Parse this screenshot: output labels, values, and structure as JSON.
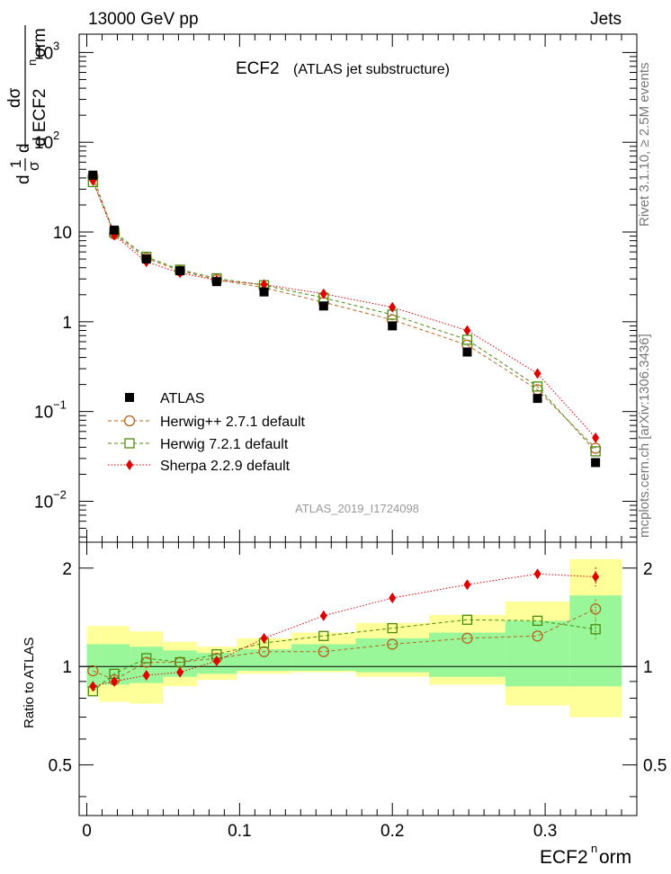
{
  "header": {
    "left": "13000 GeV pp",
    "right": "Jets"
  },
  "side": {
    "version": "Rivet 3.1.10, ≥ 2.5M events",
    "site": "mcplots.cern.ch [arXiv:1306.3436]"
  },
  "ylabel_parts": {
    "d": "d",
    "one": "1",
    "sigma": "σ",
    "dsigma": "dσ",
    "dECF": "d ECF2",
    "sup_n": "n",
    "orm": "orm"
  },
  "xlabel_parts": {
    "main": "ECF2",
    "sup": "n",
    "tail": "orm"
  },
  "ratio_ylabel": "Ratio to ATLAS",
  "colors": {
    "atlas": "#000000",
    "herwigpp": "#b5651d",
    "herwig7": "#4a8a10",
    "sherpa": "#e00000",
    "band_stat": "#99f799",
    "band_tot": "#ffff99"
  },
  "chart_data": [
    {
      "type": "scatter",
      "title": "ECF2",
      "subtitle": "(ATLAS jet substructure)",
      "analysis_label": "ATLAS_2019_I1724098",
      "yscale": "log",
      "xlim": [
        -0.005,
        0.36
      ],
      "ylim": [
        0.0035,
        1600
      ],
      "y_ticks": [
        {
          "value": 0.01,
          "base": "10",
          "exp": "−2"
        },
        {
          "value": 0.1,
          "base": "10",
          "exp": "−1"
        },
        {
          "value": 1,
          "base": "1",
          "exp": ""
        },
        {
          "value": 10,
          "base": "10",
          "exp": ""
        },
        {
          "value": 100,
          "base": "10",
          "exp": "2"
        },
        {
          "value": 1000,
          "base": "10",
          "exp": "3"
        }
      ],
      "x": [
        0.004,
        0.018,
        0.039,
        0.061,
        0.085,
        0.116,
        0.155,
        0.2,
        0.249,
        0.295,
        0.333
      ],
      "series": [
        {
          "name": "ATLAS",
          "marker": "filled-square",
          "values": [
            43,
            10.5,
            5.0,
            3.7,
            2.8,
            2.15,
            1.5,
            0.9,
            0.46,
            0.14,
            0.027
          ]
        },
        {
          "name": "Herwig++ 2.7.1 default",
          "marker": "open-circle",
          "line": "dashed",
          "values": [
            41.5,
            9.5,
            5.1,
            3.7,
            2.95,
            2.4,
            1.65,
            1.05,
            0.55,
            0.175,
            0.039
          ]
        },
        {
          "name": "Herwig 7.2.1 default",
          "marker": "open-square",
          "line": "dashed",
          "values": [
            36,
            9.9,
            5.3,
            3.8,
            3.05,
            2.55,
            1.85,
            1.2,
            0.63,
            0.19,
            0.036
          ]
        },
        {
          "name": "Sherpa 2.2.9 default",
          "marker": "diamond",
          "line": "dotted",
          "values": [
            37.5,
            9.2,
            4.65,
            3.5,
            2.9,
            2.6,
            2.05,
            1.45,
            0.8,
            0.265,
            0.051
          ]
        }
      ]
    },
    {
      "type": "scatter",
      "title": "Ratio to ATLAS",
      "xlabel": "ECF2norm",
      "xlim": [
        -0.005,
        0.36
      ],
      "ylim": [
        0.35,
        2.4
      ],
      "y_ticks": [
        "0.5",
        "1",
        "2"
      ],
      "x_ticks": [
        "0",
        "0.1",
        "0.2",
        "0.3"
      ],
      "x": [
        0.004,
        0.018,
        0.039,
        0.061,
        0.085,
        0.116,
        0.155,
        0.2,
        0.249,
        0.295,
        0.333
      ],
      "bin_edges": [
        0.0,
        0.008,
        0.028,
        0.05,
        0.072,
        0.098,
        0.134,
        0.176,
        0.224,
        0.274,
        0.316,
        0.35
      ],
      "bands": {
        "total": {
          "low": [
            0.81,
            0.78,
            0.77,
            0.87,
            0.91,
            0.95,
            0.96,
            0.93,
            0.88,
            0.76,
            0.7
          ],
          "high": [
            1.33,
            1.33,
            1.28,
            1.19,
            1.15,
            1.22,
            1.27,
            1.36,
            1.44,
            1.58,
            2.13
          ]
        },
        "stat": {
          "low": [
            0.86,
            0.88,
            0.89,
            0.93,
            0.95,
            0.97,
            0.97,
            0.96,
            0.93,
            0.87,
            0.87
          ],
          "high": [
            1.17,
            1.17,
            1.15,
            1.12,
            1.1,
            1.13,
            1.17,
            1.22,
            1.27,
            1.38,
            1.65
          ]
        }
      },
      "series": [
        {
          "name": "Herwig++ 2.7.1 default",
          "values": [
            0.97,
            0.91,
            1.03,
            1.03,
            1.06,
            1.11,
            1.11,
            1.17,
            1.22,
            1.24,
            1.5
          ]
        },
        {
          "name": "Herwig 7.2.1 default",
          "values": [
            0.84,
            0.95,
            1.06,
            1.03,
            1.09,
            1.18,
            1.24,
            1.31,
            1.39,
            1.38,
            1.3
          ]
        },
        {
          "name": "Sherpa 2.2.9 default",
          "values": [
            0.87,
            0.9,
            0.94,
            0.96,
            1.04,
            1.22,
            1.43,
            1.62,
            1.78,
            1.92,
            1.88
          ]
        }
      ]
    }
  ]
}
